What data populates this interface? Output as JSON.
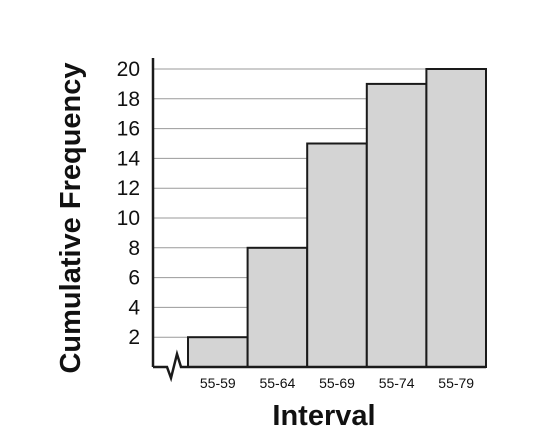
{
  "chart_data": {
    "type": "bar",
    "categories": [
      "55-59",
      "55-64",
      "55-69",
      "55-74",
      "55-79"
    ],
    "values": [
      2,
      8,
      15,
      19,
      20
    ],
    "title": "",
    "xlabel": "Interval",
    "ylabel": "Cumulative Frequency",
    "ylim": [
      0,
      20
    ],
    "yticks": [
      "2",
      "4",
      "6",
      "8",
      "10",
      "12",
      "14",
      "16",
      "18",
      "20"
    ],
    "grid": true,
    "axis_break": true,
    "bar_color": "#d4d4d4",
    "edge_color": "#1a1a1a"
  }
}
